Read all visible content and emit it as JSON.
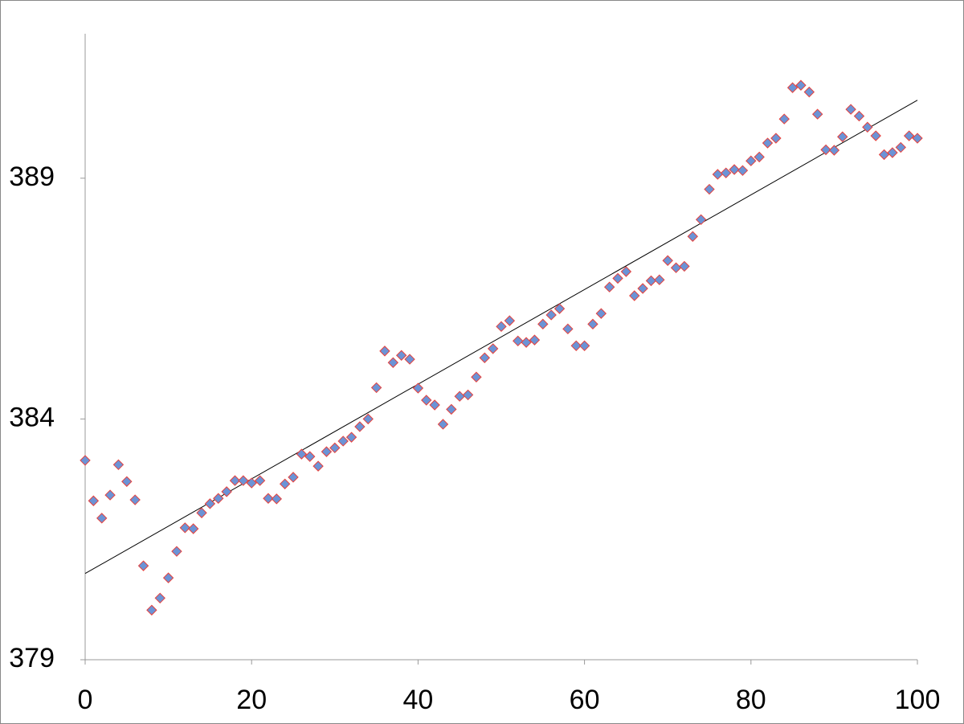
{
  "chart_data": {
    "type": "scatter",
    "x": [
      0,
      1,
      2,
      3,
      4,
      5,
      6,
      7,
      8,
      9,
      10,
      11,
      12,
      13,
      14,
      15,
      16,
      17,
      18,
      19,
      20,
      21,
      22,
      23,
      24,
      25,
      26,
      27,
      28,
      29,
      30,
      31,
      32,
      33,
      34,
      35,
      36,
      37,
      38,
      39,
      40,
      41,
      42,
      43,
      44,
      45,
      46,
      47,
      48,
      49,
      50,
      51,
      52,
      53,
      54,
      55,
      56,
      57,
      58,
      59,
      60,
      61,
      62,
      63,
      64,
      65,
      66,
      67,
      68,
      69,
      70,
      71,
      72,
      73,
      74,
      75,
      76,
      77,
      78,
      79,
      80,
      81,
      82,
      83,
      84,
      85,
      86,
      87,
      88,
      89,
      90,
      91,
      92,
      93,
      94,
      95,
      96,
      97,
      98,
      99,
      100
    ],
    "values": [
      383.14,
      382.3,
      381.94,
      382.42,
      383.05,
      382.7,
      382.32,
      380.95,
      380.03,
      380.28,
      380.7,
      381.25,
      381.74,
      381.72,
      382.05,
      382.24,
      382.35,
      382.49,
      382.72,
      382.72,
      382.67,
      382.72,
      382.35,
      382.34,
      382.65,
      382.79,
      383.27,
      383.22,
      383.02,
      383.32,
      383.4,
      383.54,
      383.62,
      383.84,
      384.0,
      384.65,
      385.41,
      385.17,
      385.32,
      385.24,
      384.64,
      384.39,
      384.29,
      383.89,
      384.2,
      384.47,
      384.5,
      384.87,
      385.27,
      385.46,
      385.92,
      386.04,
      385.62,
      385.59,
      385.64,
      385.97,
      386.16,
      386.29,
      385.87,
      385.52,
      385.52,
      385.97,
      386.19,
      386.74,
      386.92,
      387.06,
      386.56,
      386.71,
      386.87,
      386.89,
      387.29,
      387.14,
      387.17,
      387.79,
      388.14,
      388.77,
      389.08,
      389.11,
      389.18,
      389.16,
      389.36,
      389.44,
      389.73,
      389.83,
      390.23,
      390.88,
      390.93,
      390.79,
      390.33,
      389.59,
      389.58,
      389.86,
      390.43,
      390.29,
      390.06,
      389.88,
      389.49,
      389.53,
      389.64,
      389.88,
      389.83
    ],
    "marker_fill": "#6b93d6",
    "marker_edge": "#e8413c",
    "trendline": {
      "x": [
        0,
        100
      ],
      "values": [
        380.79,
        390.62
      ],
      "color": "#000000"
    },
    "xlim": [
      0,
      100
    ],
    "xticks": [
      0,
      20,
      40,
      60,
      80,
      100
    ],
    "ylim": [
      379,
      392
    ],
    "yticks": [
      379,
      384,
      389
    ]
  }
}
